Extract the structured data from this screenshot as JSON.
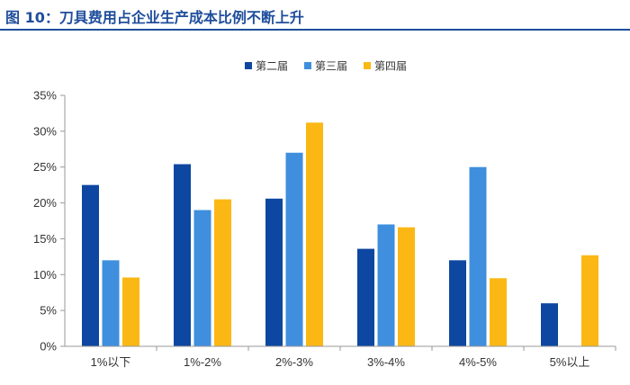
{
  "title": "图 10：刀具费用占企业生产成本比例不断上升",
  "colors": {
    "title": "#1f4e9c",
    "axis": "#999999"
  },
  "chart_data": {
    "type": "bar",
    "categories": [
      "1%以下",
      "1%-2%",
      "2%-3%",
      "3%-4%",
      "4%-5%",
      "5%以上"
    ],
    "series": [
      {
        "name": "第二届",
        "color": "#0d47a1",
        "values": [
          22.5,
          25.4,
          20.6,
          13.6,
          12.0,
          6.0
        ]
      },
      {
        "name": "第三届",
        "color": "#3f8fde",
        "values": [
          12.0,
          19.0,
          27.0,
          17.0,
          25.0,
          0
        ]
      },
      {
        "name": "第四届",
        "color": "#fbb814",
        "values": [
          9.6,
          20.5,
          31.2,
          16.6,
          9.5,
          12.7
        ]
      }
    ],
    "ylim": [
      0,
      35
    ],
    "yticks": [
      "0%",
      "5%",
      "10%",
      "15%",
      "20%",
      "25%",
      "30%",
      "35%"
    ],
    "grid": false,
    "legend": "top-center"
  }
}
